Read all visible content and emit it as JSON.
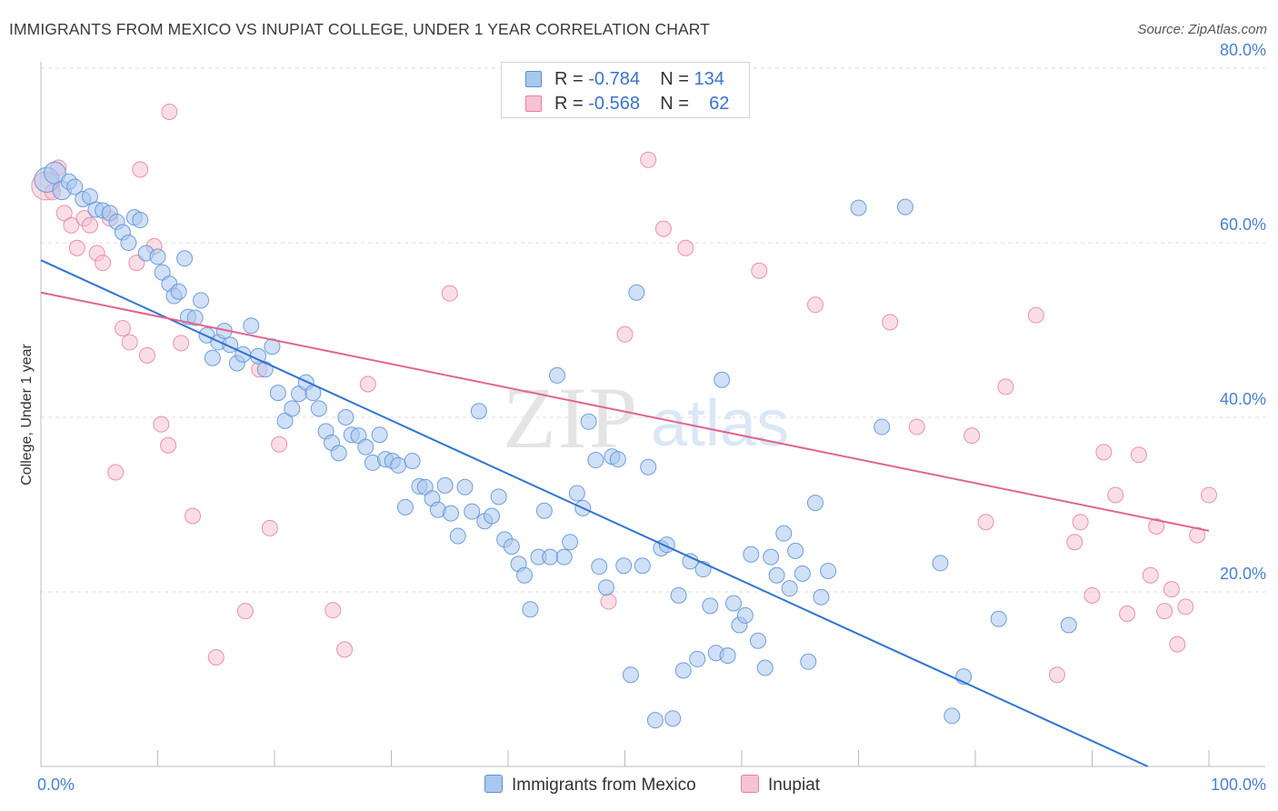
{
  "header": {
    "title": "IMMIGRANTS FROM MEXICO VS INUPIAT COLLEGE, UNDER 1 YEAR CORRELATION CHART",
    "source": "Source: ZipAtlas.com"
  },
  "watermark": {
    "part1": "ZIP",
    "part2": "atlas"
  },
  "legend": {
    "rows": [
      {
        "r_label": "R =",
        "r_value": "-0.784",
        "n_label": "N =",
        "n_value": "134"
      },
      {
        "r_label": "R =",
        "r_value": "-0.568",
        "n_label": "N =",
        "n_value": "62"
      }
    ]
  },
  "colors": {
    "blue_fill": "#a9c7ef",
    "blue_stroke": "#5a8fd6",
    "blue_line": "#2f74d0",
    "pink_fill": "#f6c3d2",
    "pink_stroke": "#e8809f",
    "pink_line": "#e0658f",
    "grid": "#dcdcdc",
    "tick_text": "#4a7fcf"
  },
  "chart_data": {
    "type": "scatter",
    "title": "IMMIGRANTS FROM MEXICO VS INUPIAT COLLEGE, UNDER 1 YEAR CORRELATION CHART",
    "xlabel": "",
    "ylabel": "College, Under 1 year",
    "xlim": [
      0,
      100
    ],
    "ylim": [
      0,
      80
    ],
    "x_tick_labels": [
      "0.0%",
      "100.0%"
    ],
    "y_tick_labels": [
      "20.0%",
      "40.0%",
      "60.0%",
      "80.0%"
    ],
    "y_tick_values": [
      20,
      40,
      60,
      80
    ],
    "grid": true,
    "series": [
      {
        "name": "Immigrants from Mexico",
        "color": "blue",
        "trend": [
          [
            0,
            58.0
          ],
          [
            100,
            -3.2
          ]
        ],
        "points": [
          [
            0.5,
            67.2,
            1.6
          ],
          [
            1.2,
            68,
            1.4
          ],
          [
            1.8,
            66,
            1.2
          ],
          [
            2.4,
            67,
            1
          ],
          [
            2.9,
            66.4,
            1
          ],
          [
            3.6,
            65,
            1
          ],
          [
            4.2,
            65.3,
            1
          ],
          [
            4.7,
            63.8,
            1
          ],
          [
            5.3,
            63.7,
            1
          ],
          [
            5.9,
            63.4,
            1
          ],
          [
            6.5,
            62.4,
            1
          ],
          [
            7,
            61.2,
            1
          ],
          [
            7.5,
            60,
            1
          ],
          [
            8,
            62.9,
            1
          ],
          [
            8.5,
            62.6,
            1
          ],
          [
            9,
            58.8,
            1
          ],
          [
            10,
            58.4,
            1
          ],
          [
            10.4,
            56.6,
            1
          ],
          [
            11,
            55.3,
            1
          ],
          [
            11.4,
            53.9,
            1
          ],
          [
            11.8,
            54.4,
            1
          ],
          [
            12.3,
            58.2,
            1
          ],
          [
            12.6,
            51.5,
            1
          ],
          [
            13.2,
            51.4,
            1
          ],
          [
            13.7,
            53.4,
            1
          ],
          [
            14.2,
            49.4,
            1
          ],
          [
            14.7,
            46.8,
            1
          ],
          [
            15.2,
            48.6,
            1
          ],
          [
            15.7,
            49.9,
            1
          ],
          [
            16.2,
            48.3,
            1
          ],
          [
            16.8,
            46.2,
            1
          ],
          [
            17.3,
            47.2,
            1
          ],
          [
            18,
            50.5,
            1
          ],
          [
            18.6,
            47,
            1
          ],
          [
            19.2,
            45.5,
            1
          ],
          [
            19.8,
            48.1,
            1
          ],
          [
            20.3,
            42.8,
            1
          ],
          [
            20.9,
            39.6,
            1
          ],
          [
            21.5,
            41,
            1
          ],
          [
            22.1,
            42.7,
            1
          ],
          [
            22.7,
            44,
            1
          ],
          [
            23.3,
            42.8,
            1
          ],
          [
            23.8,
            41,
            1
          ],
          [
            24.4,
            38.4,
            1
          ],
          [
            24.9,
            37.1,
            1
          ],
          [
            25.5,
            35.9,
            1
          ],
          [
            26.1,
            40,
            1
          ],
          [
            26.6,
            38,
            1
          ],
          [
            27.2,
            37.9,
            1
          ],
          [
            27.8,
            36.6,
            1
          ],
          [
            28.4,
            34.8,
            1
          ],
          [
            29,
            38,
            1
          ],
          [
            29.5,
            35.2,
            1
          ],
          [
            30.1,
            35,
            1
          ],
          [
            30.6,
            34.5,
            1
          ],
          [
            31.2,
            29.7,
            1
          ],
          [
            31.8,
            35,
            1
          ],
          [
            32.4,
            32.1,
            1
          ],
          [
            32.9,
            32,
            1
          ],
          [
            33.5,
            30.7,
            1
          ],
          [
            34,
            29.4,
            1
          ],
          [
            34.6,
            32.2,
            1
          ],
          [
            35.1,
            29,
            1
          ],
          [
            35.7,
            26.4,
            1
          ],
          [
            36.3,
            32,
            1
          ],
          [
            36.9,
            29.2,
            1
          ],
          [
            37.5,
            40.7,
            1
          ],
          [
            38,
            28.1,
            1
          ],
          [
            38.6,
            28.7,
            1
          ],
          [
            39.2,
            30.9,
            1
          ],
          [
            39.7,
            26,
            1
          ],
          [
            40.3,
            25.2,
            1
          ],
          [
            40.9,
            23.2,
            1
          ],
          [
            41.4,
            21.9,
            1
          ],
          [
            41.9,
            18,
            1
          ],
          [
            42.6,
            24,
            1
          ],
          [
            43.1,
            29.3,
            1
          ],
          [
            43.6,
            24,
            1
          ],
          [
            44.2,
            44.8,
            1
          ],
          [
            44.8,
            24,
            1
          ],
          [
            45.3,
            25.7,
            1
          ],
          [
            45.9,
            31.3,
            1
          ],
          [
            46.4,
            29.6,
            1
          ],
          [
            46.9,
            39.5,
            1
          ],
          [
            47.5,
            35.1,
            1
          ],
          [
            47.8,
            22.9,
            1
          ],
          [
            48.4,
            20.5,
            1
          ],
          [
            48.9,
            35.5,
            1
          ],
          [
            49.4,
            35.2,
            1
          ],
          [
            49.9,
            23,
            1
          ],
          [
            50.5,
            10.5,
            1
          ],
          [
            51,
            54.3,
            1
          ],
          [
            51.5,
            23,
            1
          ],
          [
            52,
            34.3,
            1
          ],
          [
            52.6,
            5.3,
            1
          ],
          [
            53.1,
            25,
            1
          ],
          [
            53.6,
            25.4,
            1
          ],
          [
            54.1,
            5.5,
            1
          ],
          [
            54.6,
            19.6,
            1
          ],
          [
            55,
            11,
            1
          ],
          [
            55.6,
            23.5,
            1
          ],
          [
            56.2,
            12.3,
            1
          ],
          [
            56.7,
            22.6,
            1
          ],
          [
            57.3,
            18.4,
            1
          ],
          [
            57.8,
            13,
            1
          ],
          [
            58.3,
            44.3,
            1
          ],
          [
            58.8,
            12.7,
            1
          ],
          [
            59.3,
            18.7,
            1
          ],
          [
            59.8,
            16.2,
            1
          ],
          [
            60.3,
            17.3,
            1
          ],
          [
            60.8,
            24.3,
            1
          ],
          [
            61.4,
            14.4,
            1
          ],
          [
            62,
            11.3,
            1
          ],
          [
            62.5,
            24,
            1
          ],
          [
            63,
            21.9,
            1
          ],
          [
            63.6,
            26.7,
            1
          ],
          [
            64.1,
            20.4,
            1
          ],
          [
            64.6,
            24.7,
            1
          ],
          [
            65.2,
            22.1,
            1
          ],
          [
            65.7,
            12,
            1
          ],
          [
            66.3,
            30.2,
            1
          ],
          [
            66.8,
            19.4,
            1
          ],
          [
            67.4,
            22.4,
            1
          ],
          [
            70,
            64,
            1
          ],
          [
            72,
            38.9,
            1
          ],
          [
            74,
            64.1,
            1
          ],
          [
            77,
            23.3,
            1
          ],
          [
            78,
            5.8,
            1
          ],
          [
            79,
            10.3,
            1
          ],
          [
            82,
            16.9,
            1
          ],
          [
            88,
            16.2,
            1
          ]
        ]
      },
      {
        "name": "Inupiat",
        "color": "pink",
        "trend": [
          [
            0,
            54.3
          ],
          [
            100,
            27.0
          ]
        ],
        "points": [
          [
            0.4,
            66.5,
            1.8
          ],
          [
            1,
            65.8,
            1
          ],
          [
            1.5,
            68.6,
            1
          ],
          [
            2,
            63.4,
            1
          ],
          [
            2.6,
            62,
            1
          ],
          [
            3.1,
            59.4,
            1
          ],
          [
            3.7,
            62.8,
            1
          ],
          [
            4.2,
            62,
            1
          ],
          [
            4.8,
            58.8,
            1
          ],
          [
            5.3,
            57.7,
            1
          ],
          [
            5.9,
            62.8,
            1
          ],
          [
            6.4,
            33.7,
            1
          ],
          [
            7,
            50.2,
            1
          ],
          [
            7.6,
            48.6,
            1
          ],
          [
            8.2,
            57.7,
            1
          ],
          [
            8.5,
            68.4,
            1
          ],
          [
            9.1,
            47.1,
            1
          ],
          [
            9.7,
            59.6,
            1
          ],
          [
            10.3,
            39.2,
            1
          ],
          [
            10.9,
            36.8,
            1
          ],
          [
            11,
            75,
            1
          ],
          [
            12,
            48.5,
            1
          ],
          [
            13,
            28.7,
            1
          ],
          [
            15,
            12.5,
            1
          ],
          [
            17.5,
            17.8,
            1
          ],
          [
            18.7,
            45.5,
            1
          ],
          [
            19.6,
            27.3,
            1
          ],
          [
            20.4,
            36.9,
            1
          ],
          [
            25,
            17.9,
            1
          ],
          [
            26,
            13.4,
            1
          ],
          [
            28,
            43.8,
            1
          ],
          [
            35,
            54.2,
            1
          ],
          [
            48.6,
            18.9,
            1
          ],
          [
            50,
            49.5,
            1
          ],
          [
            52,
            69.5,
            1
          ],
          [
            53.3,
            61.6,
            1
          ],
          [
            55.2,
            59.4,
            1
          ],
          [
            61.5,
            56.8,
            1
          ],
          [
            66.3,
            52.9,
            1
          ],
          [
            72.7,
            50.9,
            1
          ],
          [
            75,
            38.9,
            1
          ],
          [
            79.7,
            37.9,
            1
          ],
          [
            80.9,
            28,
            1
          ],
          [
            82.6,
            43.5,
            1
          ],
          [
            85.2,
            51.7,
            1
          ],
          [
            87,
            10.5,
            1
          ],
          [
            88.5,
            25.7,
            1
          ],
          [
            89,
            28,
            1
          ],
          [
            90,
            19.6,
            1
          ],
          [
            91,
            36,
            1
          ],
          [
            92,
            31.1,
            1
          ],
          [
            93,
            17.5,
            1
          ],
          [
            94,
            35.7,
            1
          ],
          [
            95,
            21.9,
            1
          ],
          [
            95.5,
            27.5,
            1
          ],
          [
            96.2,
            17.8,
            1
          ],
          [
            96.8,
            20.3,
            1
          ],
          [
            97.3,
            14,
            1
          ],
          [
            98,
            18.3,
            1
          ],
          [
            99,
            26.5,
            1
          ],
          [
            100,
            31.1,
            1
          ]
        ]
      }
    ]
  },
  "bottom_legend": {
    "items": [
      {
        "label": "Immigrants from Mexico"
      },
      {
        "label": "Inupiat"
      }
    ]
  }
}
